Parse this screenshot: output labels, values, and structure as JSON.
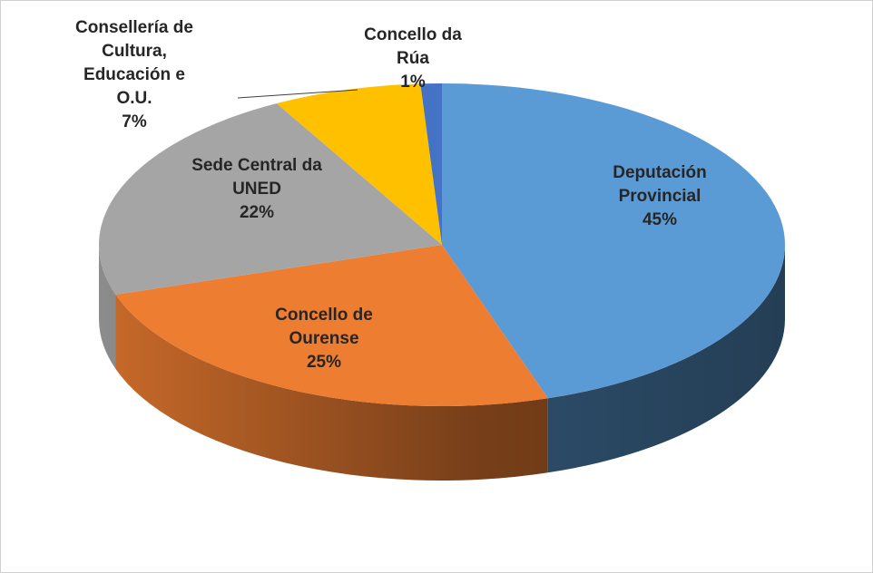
{
  "chart_data": {
    "type": "pie",
    "three_d": true,
    "categories": [
      "Deputación Provincial",
      "Concello de Ourense",
      "Sede Central da UNED",
      "Consellería de Cultura, Educación e O.U.",
      "Concello da Rúa"
    ],
    "values": [
      45,
      25,
      22,
      7,
      1
    ],
    "value_labels": [
      "45%",
      "25%",
      "22%",
      "7%",
      "1%"
    ],
    "colors": [
      "#5b9bd5",
      "#ed7d31",
      "#a5a5a5",
      "#ffc000",
      "#4472c4"
    ]
  }
}
